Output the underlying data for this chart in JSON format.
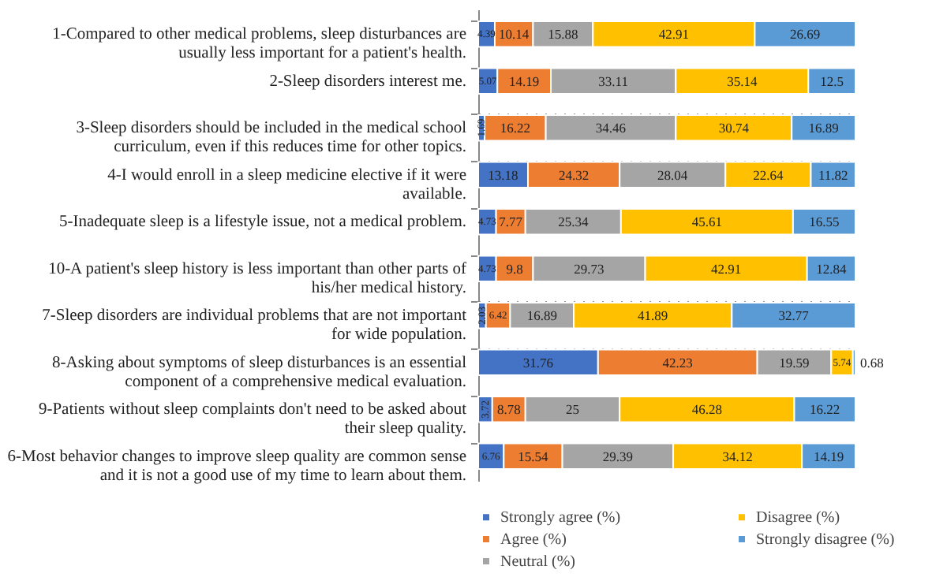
{
  "chart_data": {
    "type": "bar",
    "orientation": "horizontal",
    "stacked": true,
    "data_labels": true,
    "legend": "bottom",
    "categories": [
      "1-Compared to other medical problems, sleep disturbances are usually less important for a patient's health.",
      "2-Sleep disorders interest me.",
      "3-Sleep disorders should be included in the medical school curriculum, even if this reduces time for other topics.",
      "4-I would enroll in a sleep medicine elective if it were available.",
      "5-Inadequate sleep is a lifestyle issue, not a medical problem.",
      "10-A patient's sleep history is less important than other parts of his/her medical history.",
      "7-Sleep disorders are individual problems that are not important for wide population.",
      "8-Asking about symptoms of sleep disturbances is an essential component of a comprehensive medical evaluation.",
      "9-Patients without sleep complaints don't need to be asked about their sleep quality.",
      "6-Most behavior changes to improve sleep quality are common sense and it is not a good use of my time to learn about them."
    ],
    "series": [
      {
        "name": "Strongly agree (%)",
        "color": "#4472c4",
        "values": [
          4.39,
          5.07,
          1.69,
          13.18,
          4.73,
          4.73,
          2.03,
          31.76,
          3.72,
          6.76
        ]
      },
      {
        "name": "Agree (%)",
        "color": "#ed7d31",
        "values": [
          10.14,
          14.19,
          16.22,
          24.32,
          7.77,
          9.8,
          6.42,
          42.23,
          8.78,
          15.54
        ]
      },
      {
        "name": "Neutral (%)",
        "color": "#a5a5a5",
        "values": [
          15.88,
          33.11,
          34.46,
          28.04,
          25.34,
          29.73,
          16.89,
          19.59,
          25,
          29.39
        ]
      },
      {
        "name": "Disagree (%)",
        "color": "#ffc000",
        "values": [
          42.91,
          35.14,
          30.74,
          22.64,
          45.61,
          42.91,
          41.89,
          5.74,
          46.28,
          34.12
        ]
      },
      {
        "name": "Strongly disagree (%)",
        "color": "#5b9bd5",
        "values": [
          26.69,
          12.5,
          16.89,
          11.82,
          16.55,
          12.84,
          32.77,
          0.68,
          16.22,
          14.19
        ]
      }
    ]
  }
}
